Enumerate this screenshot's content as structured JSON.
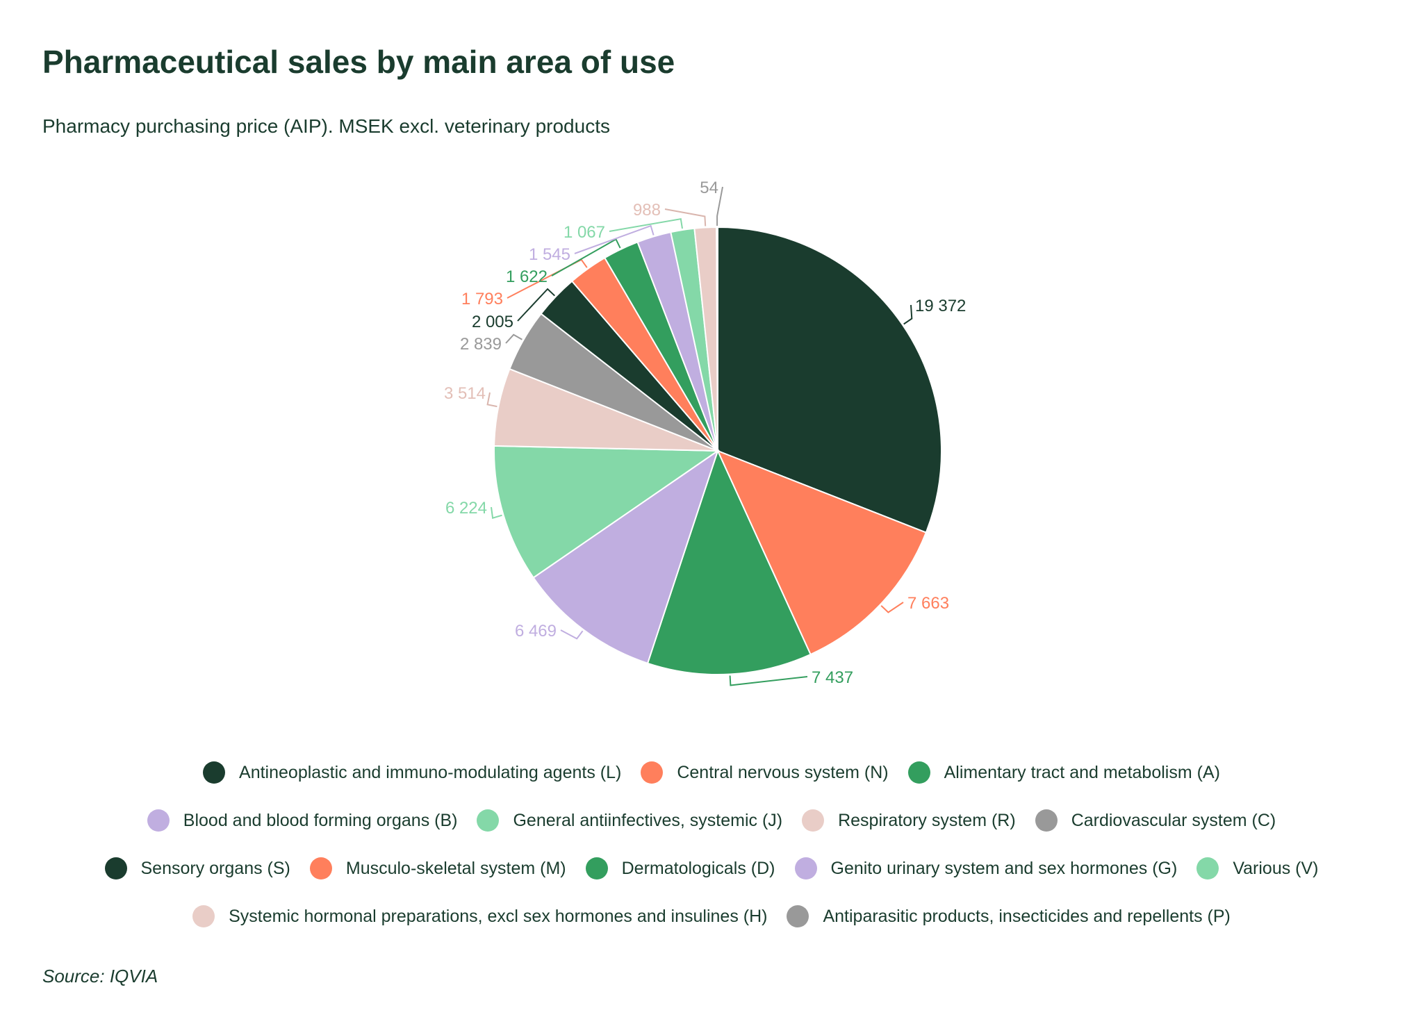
{
  "title": "Pharmaceutical sales by main area of use",
  "subtitle": "Pharmacy purchasing price (AIP). MSEK excl. veterinary products",
  "source": "Source: IQVIA",
  "chart_data": {
    "type": "pie",
    "start_angle_deg": 0,
    "direction": "clockwise",
    "slices": [
      {
        "category": "Antineoplastic and immuno-modulating agents (L)",
        "value": 19372,
        "label": "19 372",
        "color": "#1a3c2e"
      },
      {
        "category": "Central nervous system (N)",
        "value": 7663,
        "label": "7 663",
        "color": "#ff7f5c"
      },
      {
        "category": "Alimentary tract and metabolism (A)",
        "value": 7437,
        "label": "7 437",
        "color": "#339e5e"
      },
      {
        "category": "Blood and blood forming organs (B)",
        "value": 6469,
        "label": "6 469",
        "color": "#c0aee0"
      },
      {
        "category": "General antiinfectives, systemic (J)",
        "value": 6224,
        "label": "6 224",
        "color": "#84d8a8"
      },
      {
        "category": "Respiratory system (R)",
        "value": 3514,
        "label": "3 514",
        "color": "#e9cdc7"
      },
      {
        "category": "Cardiovascular system (C)",
        "value": 2839,
        "label": "2 839",
        "color": "#999999"
      },
      {
        "category": "Sensory organs (S)",
        "value": 2005,
        "label": "2 005",
        "color": "#1a3c2e"
      },
      {
        "category": "Musculo-skeletal system (M)",
        "value": 1793,
        "label": "1 793",
        "color": "#ff7f5c"
      },
      {
        "category": "Dermatologicals (D)",
        "value": 1622,
        "label": "1 622",
        "color": "#339e5e"
      },
      {
        "category": "Genito urinary system and sex hormones (G)",
        "value": 1545,
        "label": "1 545",
        "color": "#c0aee0"
      },
      {
        "category": "Various (V)",
        "value": 1067,
        "label": "1 067",
        "color": "#84d8a8"
      },
      {
        "category": "Systemic hormonal preparations, excl sex hormones and insulines (H)",
        "value": 988,
        "label": "988",
        "color": "#e9cdc7"
      },
      {
        "category": "Antiparasitic products, insecticides and repellents (P)",
        "value": 54,
        "label": "54",
        "color": "#999999"
      }
    ],
    "legend_placement": "bottom",
    "legend_rows": [
      [
        0,
        1,
        2
      ],
      [
        3,
        4,
        5,
        6
      ],
      [
        7,
        8,
        9,
        10,
        11
      ],
      [
        12,
        13
      ]
    ]
  }
}
